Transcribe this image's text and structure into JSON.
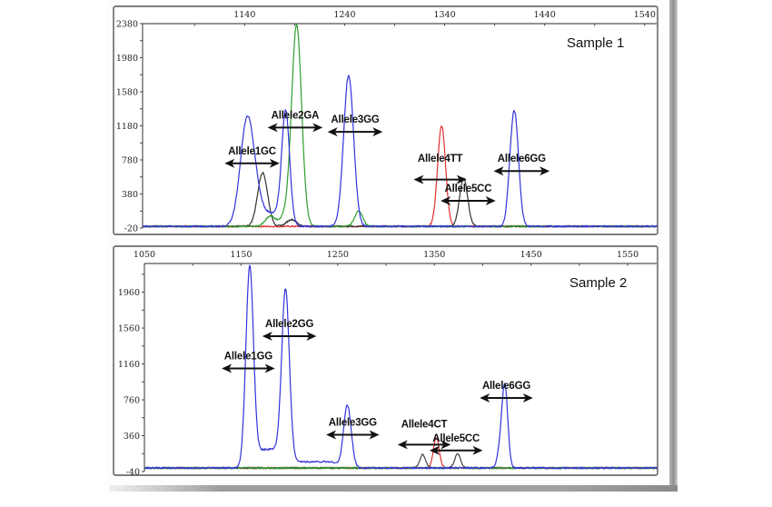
{
  "chart_data": [
    {
      "type": "line",
      "title": "Sample 1",
      "xlim": [
        1038,
        1552
      ],
      "ylim": [
        -20,
        2380
      ],
      "x_ticks": [
        1140,
        1240,
        1340,
        1440,
        1540
      ],
      "x_minor_ticks": [
        1090,
        1190,
        1290,
        1390,
        1490
      ],
      "y_ticks": [
        -20,
        380,
        780,
        1180,
        1580,
        1980,
        2380
      ],
      "y_minor_ticks": [
        180,
        580,
        980,
        1380,
        1780,
        2180
      ],
      "x_tick_labels": [
        "1140",
        "1240",
        "1340",
        "1440",
        "1540"
      ],
      "y_tick_labels": [
        "-20",
        "380",
        "780",
        "1180",
        "1580",
        "1980",
        "2380"
      ],
      "series": [
        {
          "name": "blue",
          "color": "#3333dd",
          "peaks": [
            [
              1143,
              1290,
              7
            ],
            [
              1181,
              1360,
              4
            ],
            [
              1244,
              1770,
              5
            ],
            [
              1405,
              180,
              3
            ],
            [
              1410,
              1310,
              4
            ]
          ],
          "plateaus": [
            [
              1150,
              1175,
              160
            ]
          ]
        },
        {
          "name": "green",
          "color": "#2e9e2e",
          "peaks": [
            [
              1166,
              120,
              5
            ],
            [
              1192,
              2360,
              5
            ],
            [
              1254,
              180,
              4
            ]
          ],
          "plateaus": [
            [
              1175,
              1186,
              120
            ]
          ]
        },
        {
          "name": "black",
          "color": "#333333",
          "peaks": [
            [
              1158,
              630,
              5
            ],
            [
              1187,
              80,
              5
            ],
            [
              1359,
              570,
              4
            ]
          ],
          "plateaus": []
        },
        {
          "name": "red",
          "color": "#e03030",
          "peaks": [
            [
              1337,
              1180,
              4
            ]
          ],
          "plateaus": []
        }
      ],
      "annotations": [
        {
          "label": "Allele1GC",
          "x_from": 1120,
          "x_to": 1175,
          "y": 740
        },
        {
          "label": "Allele2GA",
          "x_from": 1163,
          "x_to": 1218,
          "y": 1160
        },
        {
          "label": "Allele3GG",
          "x_from": 1223,
          "x_to": 1278,
          "y": 1110
        },
        {
          "label": "Allele4TT",
          "x_from": 1309,
          "x_to": 1362,
          "y": 550,
          "label_y": 760
        },
        {
          "label": "Allele5CC",
          "x_from": 1336,
          "x_to": 1391,
          "y": 300
        },
        {
          "label": "Allele6GG",
          "x_from": 1389,
          "x_to": 1445,
          "y": 650
        }
      ]
    },
    {
      "type": "line",
      "title": "Sample 2",
      "xlim": [
        1050,
        1580
      ],
      "ylim": [
        -40,
        2280
      ],
      "x_ticks": [
        1050,
        1150,
        1250,
        1350,
        1450,
        1550
      ],
      "x_minor_ticks": [
        1100,
        1200,
        1300,
        1400,
        1500
      ],
      "y_ticks": [
        -40,
        360,
        760,
        1160,
        1560,
        1960
      ],
      "y_minor_ticks": [
        160,
        560,
        960,
        1360,
        1760,
        2160
      ],
      "x_tick_labels": [
        "1050",
        "1150",
        "1250",
        "1350",
        "1450",
        "1550"
      ],
      "y_tick_labels": [
        "-40",
        "360",
        "760",
        "1160",
        "1560",
        "1960"
      ],
      "series": [
        {
          "name": "blue",
          "color": "#3333dd",
          "peaks": [
            [
              1159,
              2250,
              4
            ],
            [
              1196,
              1990,
              4
            ],
            [
              1260,
              700,
              4
            ],
            [
              1418,
              180,
              3
            ],
            [
              1423,
              900,
              3
            ]
          ],
          "plateaus": [
            [
              1167,
              1190,
              210
            ],
            [
              1202,
              1250,
              70
            ]
          ]
        },
        {
          "name": "black",
          "color": "#444444",
          "peaks": [
            [
              1338,
              150,
              3
            ],
            [
              1374,
              160,
              3
            ]
          ],
          "plateaus": []
        },
        {
          "name": "red",
          "color": "#e03030",
          "peaks": [
            [
              1352,
              340,
              3
            ]
          ],
          "plateaus": []
        },
        {
          "name": "green",
          "color": "#2e9e2e",
          "peaks": [],
          "plateaus": []
        }
      ],
      "annotations": [
        {
          "label": "Allele1GG",
          "x_from": 1130,
          "x_to": 1185,
          "y": 1110
        },
        {
          "label": "Allele2GG",
          "x_from": 1172,
          "x_to": 1228,
          "y": 1470
        },
        {
          "label": "Allele3GG",
          "x_from": 1238,
          "x_to": 1293,
          "y": 370
        },
        {
          "label": "Allele4CT",
          "x_from": 1312,
          "x_to": 1367,
          "y": 260,
          "label_y": 450
        },
        {
          "label": "Allele5CC",
          "x_from": 1345,
          "x_to": 1400,
          "y": 195
        },
        {
          "label": "Allele6GG",
          "x_from": 1397,
          "x_to": 1452,
          "y": 780
        }
      ]
    }
  ]
}
